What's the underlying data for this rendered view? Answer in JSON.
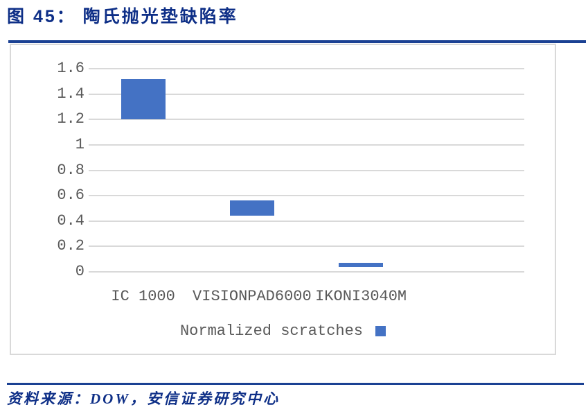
{
  "header": {
    "figure_label": "图 45：",
    "title": "图 45：  陶氏抛光垫缺陷率"
  },
  "chart_data": {
    "type": "bar",
    "variant": "floating_range_bars",
    "title": "陶氏抛光垫缺陷率",
    "categories": [
      "IC 1000",
      "VISIONPAD6000",
      "IKONI3040M"
    ],
    "series": [
      {
        "name": "Normalized scratches",
        "ranges": [
          [
            1.2,
            1.52
          ],
          [
            0.44,
            0.56
          ],
          [
            0.04,
            0.07
          ]
        ]
      }
    ],
    "xlabel": "",
    "ylabel": "",
    "ylim": [
      0,
      1.6
    ],
    "ytick_step": 0.2,
    "ytick_labels": [
      "0",
      "0.2",
      "0.4",
      "0.6",
      "0.8",
      "1",
      "1.2",
      "1.4",
      "1.6"
    ],
    "grid": true,
    "x_slots": 4,
    "legend": {
      "label": "Normalized scratches",
      "position": "bottom-center",
      "marker": "square-after-text"
    },
    "colors": {
      "bar": "#4472C4",
      "gridline": "#D9D9D9",
      "tick_text": "#595959"
    }
  },
  "source": {
    "text": "资料来源：DOW，安信证券研究中心"
  },
  "colors": {
    "text_navy": "#0E2F87",
    "rule_navy": "#1B4193",
    "panel_border": "#D9D9D9",
    "background": "#FFFFFF"
  }
}
